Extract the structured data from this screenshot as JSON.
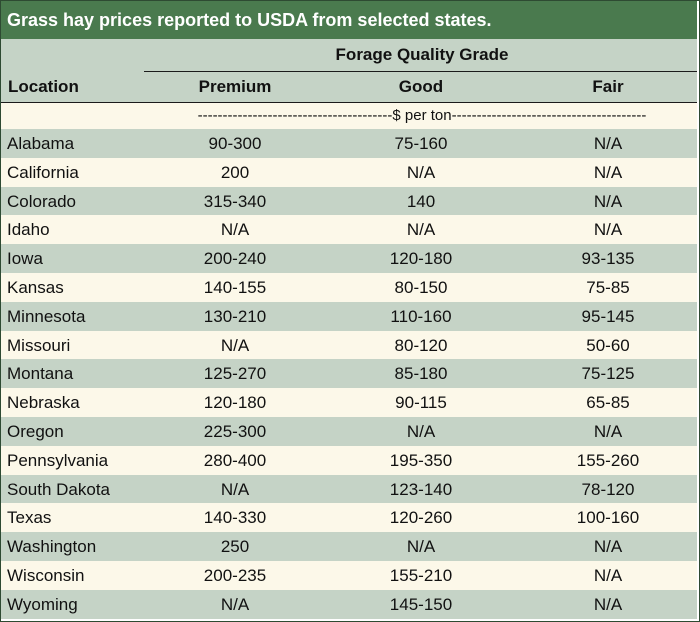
{
  "title": "Grass hay prices reported to USDA from selected states.",
  "header": {
    "group_label": "Forage Quality Grade",
    "location_label": "Location",
    "columns": [
      "Premium",
      "Good",
      "Fair"
    ]
  },
  "unit_label": "---------------------------------------$ per ton---------------------------------------",
  "rows": [
    {
      "location": "Alabama",
      "premium": "90-300",
      "good": "75-160",
      "fair": "N/A"
    },
    {
      "location": "California",
      "premium": "200",
      "good": "N/A",
      "fair": "N/A"
    },
    {
      "location": "Colorado",
      "premium": "315-340",
      "good": "140",
      "fair": "N/A"
    },
    {
      "location": "Idaho",
      "premium": "N/A",
      "good": "N/A",
      "fair": "N/A"
    },
    {
      "location": "Iowa",
      "premium": "200-240",
      "good": "120-180",
      "fair": "93-135"
    },
    {
      "location": "Kansas",
      "premium": "140-155",
      "good": "80-150",
      "fair": "75-85"
    },
    {
      "location": "Minnesota",
      "premium": "130-210",
      "good": "110-160",
      "fair": "95-145"
    },
    {
      "location": "Missouri",
      "premium": "N/A",
      "good": "80-120",
      "fair": "50-60"
    },
    {
      "location": "Montana",
      "premium": "125-270",
      "good": "85-180",
      "fair": "75-125"
    },
    {
      "location": "Nebraska",
      "premium": "120-180",
      "good": "90-115",
      "fair": "65-85"
    },
    {
      "location": "Oregon",
      "premium": "225-300",
      "good": "N/A",
      "fair": "N/A"
    },
    {
      "location": "Pennsylvania",
      "premium": "280-400",
      "good": "195-350",
      "fair": "155-260"
    },
    {
      "location": "South Dakota",
      "premium": "N/A",
      "good": "123-140",
      "fair": "78-120"
    },
    {
      "location": "Texas",
      "premium": "140-330",
      "good": "120-260",
      "fair": "100-160"
    },
    {
      "location": "Washington",
      "premium": "250",
      "good": "N/A",
      "fair": "N/A"
    },
    {
      "location": "Wisconsin",
      "premium": "200-235",
      "good": "155-210",
      "fair": "N/A"
    },
    {
      "location": "Wyoming",
      "premium": "N/A",
      "good": "145-150",
      "fair": "N/A"
    }
  ],
  "colors": {
    "title_bg": "#4a7a4e",
    "band_green": "#c5d3c6",
    "band_cream": "#fcf8e9"
  }
}
